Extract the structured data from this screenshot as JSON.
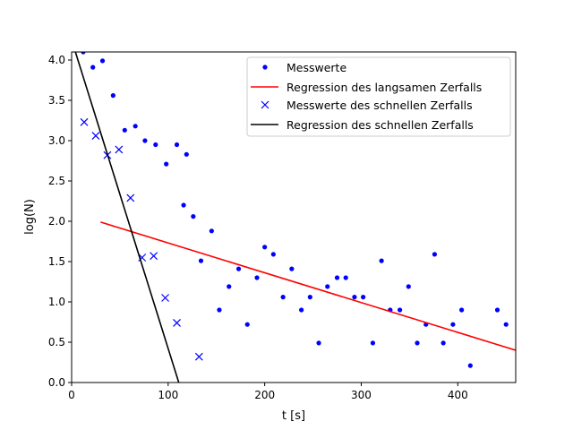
{
  "chart_data": {
    "type": "scatter",
    "title": "",
    "xlabel": "t [s]",
    "ylabel": "log(N)",
    "xlim": [
      0,
      460
    ],
    "ylim": [
      0,
      4.1
    ],
    "xticks": [
      0,
      100,
      200,
      300,
      400
    ],
    "xtick_labels": [
      "0",
      "100",
      "200",
      "300",
      "400"
    ],
    "yticks": [
      0.0,
      0.5,
      1.0,
      1.5,
      2.0,
      2.5,
      3.0,
      3.5,
      4.0
    ],
    "ytick_labels": [
      "0.0",
      "0.5",
      "1.0",
      "1.5",
      "2.0",
      "2.5",
      "3.0",
      "3.5",
      "4.0"
    ],
    "grid": false,
    "legend_position": "top-right",
    "series": [
      {
        "name": "Messwerte",
        "kind": "points",
        "color": "#0000ff",
        "points": [
          [
            12,
            4.1
          ],
          [
            22,
            3.91
          ],
          [
            32,
            3.99
          ],
          [
            43,
            3.56
          ],
          [
            55,
            3.13
          ],
          [
            66,
            3.18
          ],
          [
            76,
            3.0
          ],
          [
            87,
            2.95
          ],
          [
            98,
            2.71
          ],
          [
            109,
            2.95
          ],
          [
            119,
            2.83
          ],
          [
            116,
            2.2
          ],
          [
            126,
            2.06
          ],
          [
            134,
            1.51
          ],
          [
            145,
            1.88
          ],
          [
            153,
            0.9
          ],
          [
            163,
            1.19
          ],
          [
            173,
            1.41
          ],
          [
            182,
            0.72
          ],
          [
            192,
            1.3
          ],
          [
            200,
            1.68
          ],
          [
            209,
            1.59
          ],
          [
            219,
            1.06
          ],
          [
            228,
            1.41
          ],
          [
            238,
            0.9
          ],
          [
            247,
            1.06
          ],
          [
            256,
            0.49
          ],
          [
            265,
            1.19
          ],
          [
            275,
            1.3
          ],
          [
            284,
            1.3
          ],
          [
            293,
            1.06
          ],
          [
            302,
            1.06
          ],
          [
            312,
            0.49
          ],
          [
            321,
            1.51
          ],
          [
            330,
            0.9
          ],
          [
            340,
            0.9
          ],
          [
            349,
            1.19
          ],
          [
            358,
            0.49
          ],
          [
            367,
            0.72
          ],
          [
            376,
            1.59
          ],
          [
            385,
            0.49
          ],
          [
            395,
            0.72
          ],
          [
            404,
            0.9
          ],
          [
            413,
            0.21
          ],
          [
            441,
            0.9
          ],
          [
            450,
            0.72
          ]
        ]
      },
      {
        "name": "Regression des langsamen Zerfalls",
        "kind": "line",
        "color": "#ff0000",
        "points": [
          [
            30,
            1.99
          ],
          [
            460,
            0.4
          ]
        ]
      },
      {
        "name": "Messwerte des schnellen Zerfalls",
        "kind": "crosses",
        "color": "#0000ff",
        "points": [
          [
            13,
            3.23
          ],
          [
            25,
            3.06
          ],
          [
            37,
            2.82
          ],
          [
            49,
            2.89
          ],
          [
            61,
            2.29
          ],
          [
            73,
            1.55
          ],
          [
            85,
            1.57
          ],
          [
            97,
            1.05
          ],
          [
            109,
            0.74
          ],
          [
            132,
            0.32
          ]
        ]
      },
      {
        "name": "Regression des schnellen Zerfalls",
        "kind": "line",
        "color": "#000000",
        "points": [
          [
            0,
            4.25
          ],
          [
            111,
            0.0
          ]
        ]
      }
    ]
  }
}
